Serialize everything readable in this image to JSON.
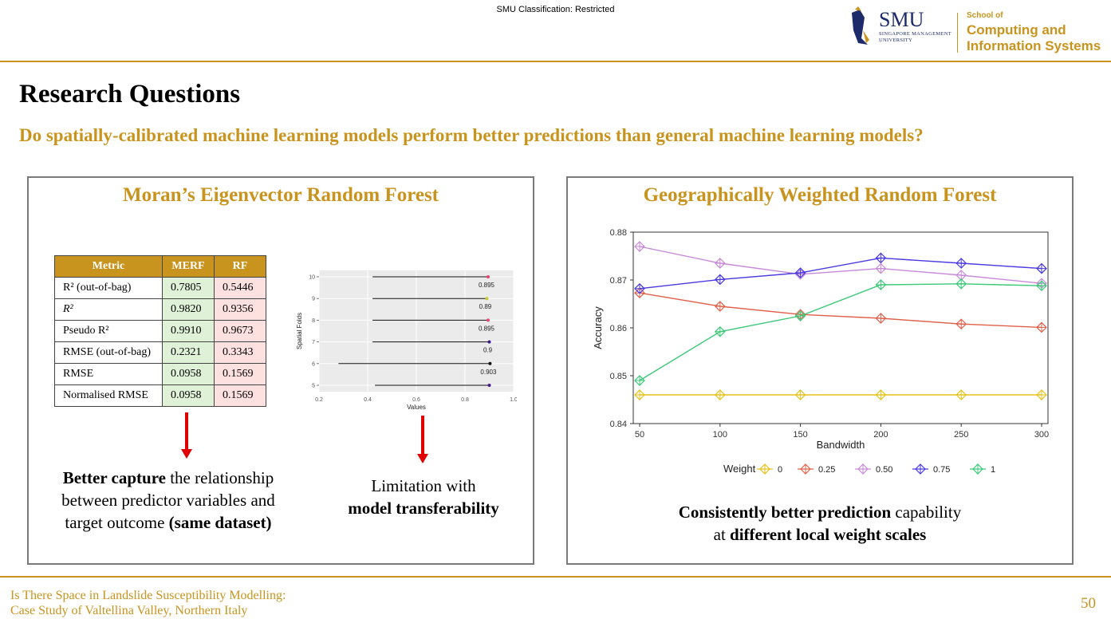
{
  "header": {
    "classification": "SMU Classification: Restricted",
    "logo": {
      "smu": "SMU",
      "smu_sub1": "SINGAPORE MANAGEMENT",
      "smu_sub2": "UNIVERSITY",
      "school_of": "School of",
      "school_line1": "Computing and",
      "school_line2": "Information Systems",
      "color": "#c8941e"
    }
  },
  "slide": {
    "title": "Research Questions",
    "question": "Do spatially-calibrated machine learning models perform better predictions than general machine learning models?"
  },
  "left_panel": {
    "title": "Moran’s Eigenvector Random Forest",
    "table": {
      "headers": [
        "Metric",
        "MERF",
        "RF"
      ],
      "rows": [
        {
          "metric": "R² (out-of-bag)",
          "merf": "0.7805",
          "rf": "0.5446"
        },
        {
          "metric": "R²",
          "merf": "0.9820",
          "rf": "0.9356"
        },
        {
          "metric": "Pseudo R²",
          "merf": "0.9910",
          "rf": "0.9673"
        },
        {
          "metric": "RMSE (out-of-bag)",
          "merf": "0.2321",
          "rf": "0.3343"
        },
        {
          "metric": "RMSE",
          "merf": "0.0958",
          "rf": "0.1569"
        },
        {
          "metric": "Normalised RMSE",
          "merf": "0.0958",
          "rf": "0.1569"
        }
      ]
    },
    "caption1": {
      "bold": "Better capture",
      "rest1": " the relationship",
      "line2": "between predictor variables and",
      "line3_pre": "target outcome ",
      "line3_bold": "(same dataset)"
    },
    "caption2": {
      "line1": "Limitation with",
      "line2_bold": "model transferability"
    }
  },
  "right_panel": {
    "title": "Geographically Weighted Random Forest",
    "caption": {
      "bold1": "Consistently better prediction",
      "rest1": " capability",
      "line2_pre": "at ",
      "line2_bold": "different local weight scales"
    }
  },
  "chart_data": [
    {
      "type": "dot-range",
      "xlabel": "Values",
      "ylabel": "Spatial Folds",
      "xlim": [
        0.2,
        1.0
      ],
      "xticks": [
        "0.2",
        "0.4",
        "0.6",
        "0.8",
        "1.0"
      ],
      "folds": [
        {
          "fold": "10",
          "start": 0.42,
          "value": 0.895,
          "label": "0.895",
          "color": "#e8456b"
        },
        {
          "fold": "9",
          "start": 0.42,
          "value": 0.89,
          "label": "0.89",
          "color": "#c8c832"
        },
        {
          "fold": "8",
          "start": 0.42,
          "value": 0.895,
          "label": "0.895",
          "color": "#e8456b"
        },
        {
          "fold": "7",
          "start": 0.42,
          "value": 0.9,
          "label": "0.9",
          "color": "#3a1a8a"
        },
        {
          "fold": "6",
          "start": 0.28,
          "value": 0.903,
          "label": "0.903",
          "color": "#111111"
        },
        {
          "fold": "5",
          "start": 0.43,
          "value": 0.9,
          "label": "",
          "color": "#4a1a8a"
        }
      ],
      "grid": true
    },
    {
      "type": "line",
      "xlabel": "Bandwidth",
      "ylabel": "Accuracy",
      "x": [
        50,
        100,
        150,
        200,
        250,
        300
      ],
      "ylim": [
        0.84,
        0.88
      ],
      "yticks": [
        "0.84",
        "0.85",
        "0.86",
        "0.87",
        "0.88"
      ],
      "xticks": [
        "50",
        "100",
        "150",
        "200",
        "250",
        "300"
      ],
      "legend_title": "Weight",
      "legend_position": "bottom",
      "series": [
        {
          "name": "0",
          "color": "#e6c21a",
          "values": [
            0.846,
            0.846,
            0.846,
            0.846,
            0.846,
            0.846
          ]
        },
        {
          "name": "0.25",
          "color": "#e0604a",
          "values": [
            0.8673,
            0.8645,
            0.8628,
            0.862,
            0.8608,
            0.8601
          ]
        },
        {
          "name": "0.50",
          "color": "#c78ad8",
          "values": [
            0.877,
            0.8735,
            0.8712,
            0.8724,
            0.871,
            0.8693
          ]
        },
        {
          "name": "0.75",
          "color": "#4a3ae0",
          "values": [
            0.8682,
            0.8701,
            0.8715,
            0.8746,
            0.8735,
            0.8724
          ]
        },
        {
          "name": "1",
          "color": "#3cc878",
          "values": [
            0.849,
            0.8592,
            0.8625,
            0.869,
            0.8692,
            0.8688
          ]
        }
      ],
      "grid": false
    }
  ],
  "footer": {
    "line1": "Is There Space in Landslide Susceptibility Modelling:",
    "line2": "Case Study of Valtellina Valley, Northern Italy",
    "page": "50"
  }
}
